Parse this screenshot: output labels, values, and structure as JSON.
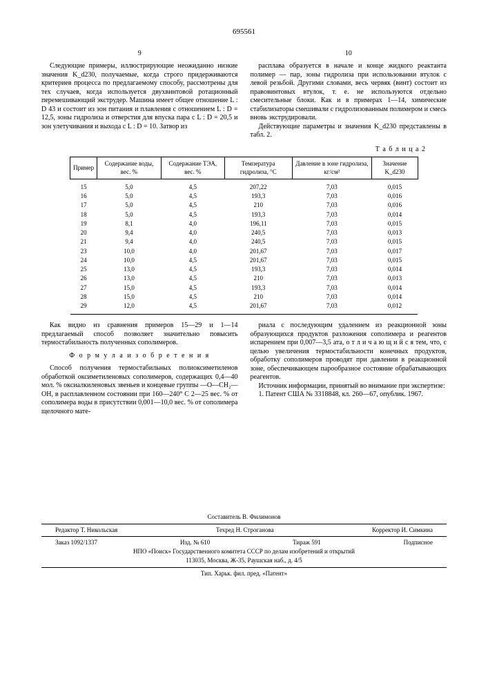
{
  "doc_number": "695561",
  "left_col_num": "9",
  "right_col_num": "10",
  "left_p1": "Следующие примеры, иллюстрирующие неожиданно низкие значения K_d230, получаемые, когда строго придерживаются критериев процесса по предлагаемому способу, рассмотрены для тех случаев, когда используется двухвинтовой ротационный перемешивающий экструдер. Машина имеет общее отношение L : D 43 и состоит из зон питания и плавления с отношением L : D = 12,5, зоны гидролиза и отверстия для впуска пара с L : D = 20,5 и зон улетучивания и выхода с L : D = 10. Затвор из",
  "right_p1": "расплава образуется в начале и конце жидкого реактанта полимер — пар, зоны гидролиза при использовании втулок с левой резьбой. Другими словами, весь червяк (винт) состоит из правовинтовых втулок, т. е. не используются отдельно смесительные блоки. Как и в примерах 1—14, химические стабилизаторы смешивали с гидролизованным полимером и смесь вновь экструдировали.",
  "right_p2": "Действующие параметры и значения K_d230 представлены в табл. 2.",
  "table_label": "Т а б л и ц а  2",
  "table": {
    "headers": [
      "Пример",
      "Содержание воды, вес. %",
      "Содержание ТЭА, вес. %",
      "Температура гидролиза, °С",
      "Давление в зоне гидролиза, кг/см²",
      "Значение K_d230"
    ],
    "rows": [
      [
        "15",
        "5,0",
        "4,5",
        "207,22",
        "7,03",
        "0,015"
      ],
      [
        "16",
        "5,0",
        "4,5",
        "193,3",
        "7,03",
        "0,016"
      ],
      [
        "17",
        "5,0",
        "4,5",
        "210",
        "7,03",
        "0,016"
      ],
      [
        "18",
        "5,0",
        "4,5",
        "193,3",
        "7,03",
        "0,014"
      ],
      [
        "19",
        "8,1",
        "4,0",
        "196,11",
        "7,03",
        "0,015"
      ],
      [
        "20",
        "9,4",
        "4,0",
        "240,5",
        "7,03",
        "0,013"
      ],
      [
        "21",
        "9,4",
        "4,0",
        "240,5",
        "7,03",
        "0,015"
      ],
      [
        "23",
        "10,0",
        "4,0",
        "201,67",
        "7,03",
        "0,017"
      ],
      [
        "24",
        "10,0",
        "4,5",
        "201,67",
        "7,03",
        "0,015"
      ],
      [
        "25",
        "13,0",
        "4,5",
        "193,3",
        "7,03",
        "0,014"
      ],
      [
        "26",
        "13,0",
        "4,5",
        "210",
        "7,03",
        "0,013"
      ],
      [
        "27",
        "15,0",
        "4,5",
        "193,3",
        "7,03",
        "0,014"
      ],
      [
        "28",
        "15,0",
        "4,5",
        "210",
        "7,03",
        "0,014"
      ],
      [
        "29",
        "12,0",
        "4,5",
        "201,67",
        "7,03",
        "0,012"
      ]
    ]
  },
  "lower_left_p1": "Как видно из сравнения примеров 15—29 и 1—14 предлагаемый способ позволяет значительно повысить термостабильность полученных сополимеров.",
  "formula_title": "Ф о р м у л а  и з о б р е т е н и я",
  "lower_left_p2": "Способ получения термостабильных полиоксиметиленов обработкой оксиметиленовых сополимеров, содержащих 0,4—40 мол. % оксиалкиленовых звеньев и концевые группы —O—CH₂—OH, в расплавленном состоянии при 160—240° С 2—25 вес. % от сополимера воды в присутствии 0,001—10,0 вес. % от сополимера щелочного мате-",
  "lower_right_p1": "риала с последующим удалением из реакционной зоны образующихся продуктов разложения сополимера и реагентов испарением при 0,007—3,5 ата, о т л и ч а ю щ и й с я тем, что, с целью увеличения термостабильности конечных продуктов, обработку сополимеров проводят при давлении в реакционной зоне, обеспечивающем парообразное состояние обрабатывающих реагентов.",
  "lower_right_p2": "Источник информации, принятый во внимание при экспертизе:",
  "lower_right_p3": "1. Патент США № 3318848, кл. 260—67, опублик. 1967.",
  "footer": {
    "compiler": "Составитель В. Филимонов",
    "editor": "Редактор Т. Никольская",
    "techred": "Техред Н. Строганова",
    "corrector": "Корректор И. Симкина",
    "order": "Заказ 1092/1337",
    "izd": "Изд. № 610",
    "tirazh": "Тираж 591",
    "podpisnoe": "Подписное",
    "org": "НПО «Поиск» Государственного комитета СССР по делам изобретений и открытий",
    "addr": "113035, Москва, Ж-35, Раушская наб., д. 4/5",
    "printer": "Тип. Харьк. фил. пред. «Патент»"
  }
}
